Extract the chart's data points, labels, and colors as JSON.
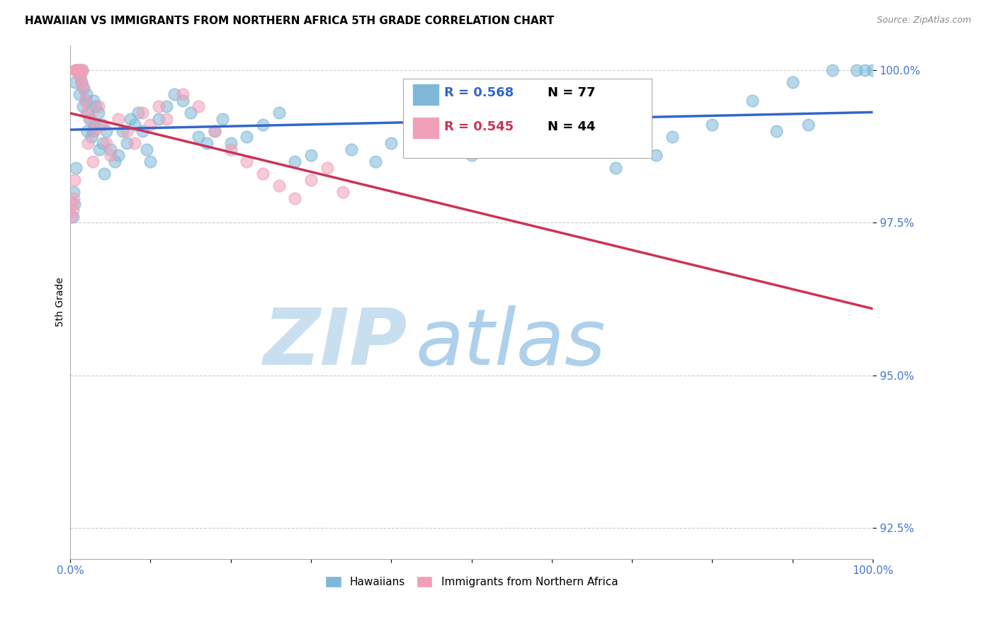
{
  "title": "HAWAIIAN VS IMMIGRANTS FROM NORTHERN AFRICA 5TH GRADE CORRELATION CHART",
  "source": "Source: ZipAtlas.com",
  "ylabel": "5th Grade",
  "xlim": [
    0.0,
    100.0
  ],
  "ylim": [
    92.0,
    100.4
  ],
  "yticks": [
    92.5,
    95.0,
    97.5,
    100.0
  ],
  "ytick_labels": [
    "92.5%",
    "95.0%",
    "97.5%",
    "100.0%"
  ],
  "xtick_labels_show": [
    "0.0%",
    "100.0%"
  ],
  "legend_R_blue": "0.568",
  "legend_N_blue": "77",
  "legend_R_pink": "0.545",
  "legend_N_pink": "44",
  "legend_label_blue": "Hawaiians",
  "legend_label_pink": "Immigrants from Northern Africa",
  "blue_color": "#7db8d8",
  "pink_color": "#f0a0b8",
  "blue_line_color": "#3366cc",
  "pink_line_color": "#cc3355",
  "legend_text_blue": "#3366cc",
  "legend_text_pink": "#cc3355",
  "tick_color": "#4477cc",
  "watermark_zip_color": "#c8dff0",
  "watermark_atlas_color": "#a0c8e8",
  "background_color": "#ffffff",
  "grid_color": "#cccccc",
  "blue_x": [
    0.3,
    0.5,
    0.6,
    0.8,
    1.0,
    1.2,
    1.4,
    1.5,
    1.7,
    1.9,
    2.0,
    2.2,
    2.4,
    2.6,
    2.8,
    3.0,
    3.2,
    3.5,
    3.8,
    4.0,
    4.5,
    5.0,
    5.5,
    6.0,
    6.5,
    7.0,
    7.5,
    8.0,
    8.5,
    9.0,
    9.5,
    10.0,
    11.0,
    12.0,
    13.0,
    14.0,
    15.0,
    16.0,
    17.0,
    18.0,
    19.0,
    20.0,
    22.0,
    24.0,
    26.0,
    28.0,
    30.0,
    35.0,
    38.0,
    40.0,
    44.0,
    48.0,
    50.0,
    55.0,
    60.0,
    65.0,
    68.0,
    70.0,
    73.0,
    75.0,
    80.0,
    85.0,
    88.0,
    90.0,
    92.0,
    95.0,
    98.0,
    99.0,
    100.0,
    0.4,
    0.7,
    1.1,
    1.6,
    2.1,
    2.9,
    3.6,
    4.2
  ],
  "blue_y": [
    97.6,
    97.8,
    99.8,
    100.0,
    100.0,
    99.9,
    99.8,
    100.0,
    99.7,
    99.5,
    99.6,
    99.3,
    99.2,
    98.9,
    99.0,
    99.1,
    99.4,
    99.3,
    99.1,
    98.8,
    99.0,
    98.7,
    98.5,
    98.6,
    99.0,
    98.8,
    99.2,
    99.1,
    99.3,
    99.0,
    98.7,
    98.5,
    99.2,
    99.4,
    99.6,
    99.5,
    99.3,
    98.9,
    98.8,
    99.0,
    99.2,
    98.8,
    98.9,
    99.1,
    99.3,
    98.5,
    98.6,
    98.7,
    98.5,
    98.8,
    99.0,
    98.7,
    98.6,
    98.8,
    99.0,
    99.2,
    98.4,
    99.3,
    98.6,
    98.9,
    99.1,
    99.5,
    99.0,
    99.8,
    99.1,
    100.0,
    100.0,
    100.0,
    100.0,
    98.0,
    98.4,
    99.6,
    99.4,
    99.0,
    99.5,
    98.7,
    98.3
  ],
  "pink_x": [
    0.1,
    0.2,
    0.3,
    0.4,
    0.5,
    0.6,
    0.7,
    0.8,
    0.9,
    1.0,
    1.1,
    1.2,
    1.3,
    1.4,
    1.5,
    1.6,
    1.8,
    2.0,
    2.2,
    2.5,
    2.8,
    3.0,
    3.5,
    4.0,
    4.5,
    5.0,
    6.0,
    7.0,
    8.0,
    9.0,
    10.0,
    11.0,
    12.0,
    14.0,
    16.0,
    18.0,
    20.0,
    22.0,
    24.0,
    26.0,
    28.0,
    30.0,
    32.0,
    34.0
  ],
  "pink_y": [
    97.6,
    97.8,
    97.7,
    97.9,
    98.2,
    100.0,
    100.0,
    100.0,
    100.0,
    100.0,
    100.0,
    99.9,
    100.0,
    99.8,
    100.0,
    99.7,
    99.5,
    99.3,
    98.8,
    99.2,
    98.5,
    99.0,
    99.4,
    99.1,
    98.8,
    98.6,
    99.2,
    99.0,
    98.8,
    99.3,
    99.1,
    99.4,
    99.2,
    99.6,
    99.4,
    99.0,
    98.7,
    98.5,
    98.3,
    98.1,
    97.9,
    98.2,
    98.4,
    98.0
  ]
}
